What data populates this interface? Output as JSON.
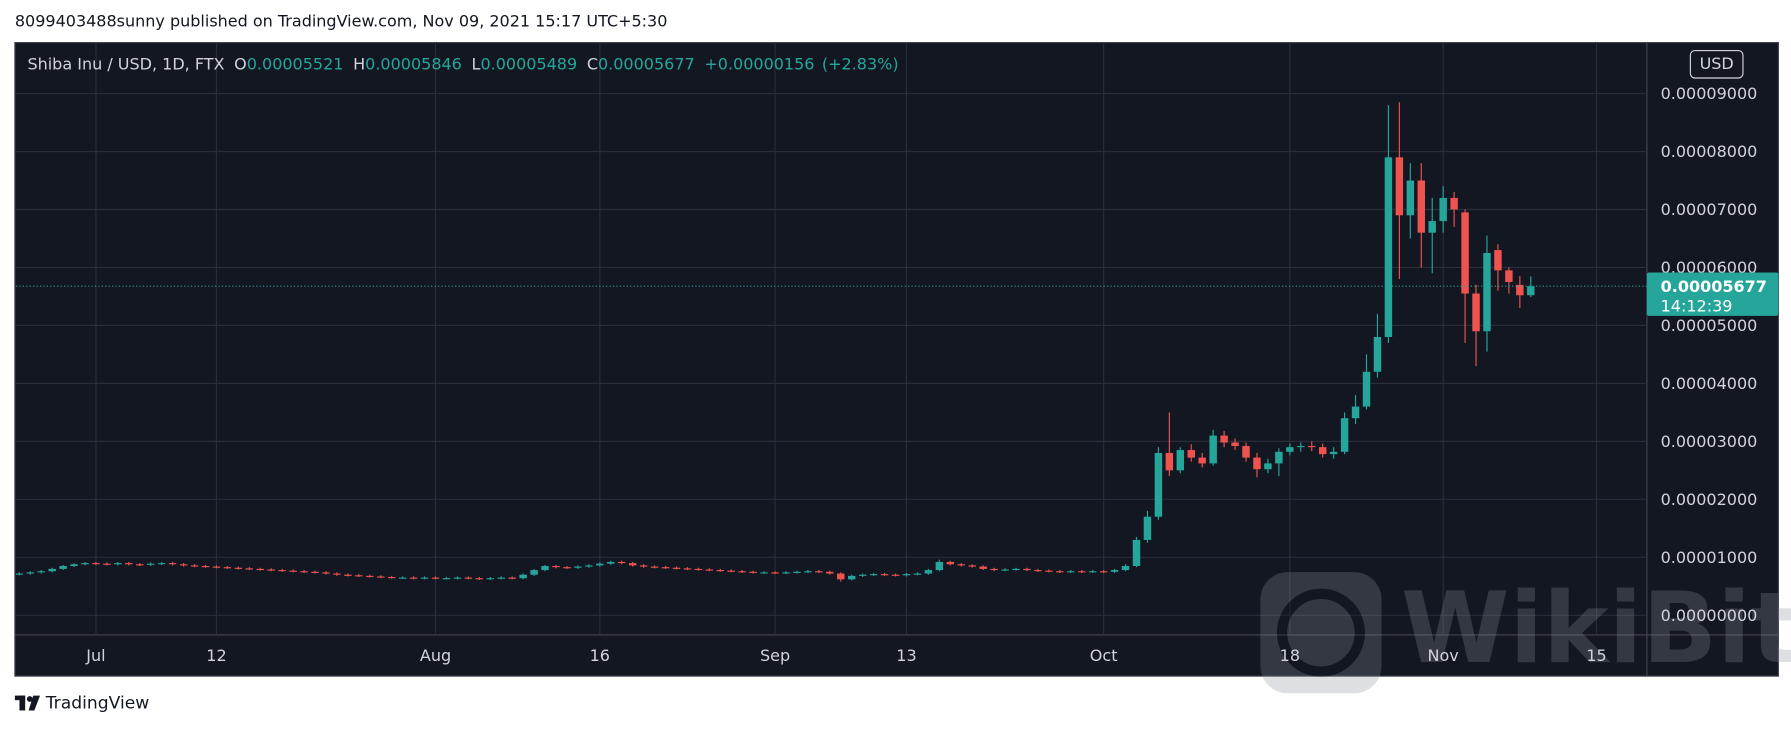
{
  "published": "8099403488sunny published on TradingView.com, Nov 09, 2021 15:17 UTC+5:30",
  "footer": "TradingView",
  "watermark": "WikiBit",
  "chart_data": {
    "type": "candlestick",
    "symbol": "Shiba Inu / USD, 1D, FTX",
    "ohlc_labels": [
      "O",
      "H",
      "L",
      "C"
    ],
    "change": "+0.00000156",
    "change_percent": "(+2.83%)",
    "currency": "USD",
    "countdown": "14:12:39",
    "up_color": "#26a69a",
    "down_color": "#ef5350",
    "grid": true,
    "ylim": [
      -3.4e-06,
      9.88e-05
    ],
    "yticks": [
      {
        "value": 0,
        "label": "0.00000000"
      },
      {
        "value": 1e-05,
        "label": "0.00001000"
      },
      {
        "value": 2e-05,
        "label": "0.00002000"
      },
      {
        "value": 3e-05,
        "label": "0.00003000"
      },
      {
        "value": 4e-05,
        "label": "0.00004000"
      },
      {
        "value": 5e-05,
        "label": "0.00005000"
      },
      {
        "value": 6e-05,
        "label": "0.00006000"
      },
      {
        "value": 7e-05,
        "label": "0.00007000"
      },
      {
        "value": 8e-05,
        "label": "0.00008000"
      },
      {
        "value": 9e-05,
        "label": "0.00009000"
      }
    ],
    "xlim": [
      -0.3,
      148.6
    ],
    "xticks": [
      {
        "value": 7,
        "label": "Jul"
      },
      {
        "value": 18,
        "label": "12"
      },
      {
        "value": 38,
        "label": "Aug"
      },
      {
        "value": 53,
        "label": "16"
      },
      {
        "value": 69,
        "label": "Sep"
      },
      {
        "value": 81,
        "label": "13"
      },
      {
        "value": 99,
        "label": "Oct"
      },
      {
        "value": 116,
        "label": "18"
      },
      {
        "value": 130,
        "label": "Nov"
      },
      {
        "value": 144,
        "label": "15"
      }
    ],
    "open": [
      7.1e-06,
      7.2e-06,
      7.4e-06,
      7.6e-06,
      8e-06,
      8.5e-06,
      8.8e-06,
      9e-06,
      8.9e-06,
      8.8e-06,
      9e-06,
      8.8e-06,
      8.7e-06,
      8.9e-06,
      9e-06,
      8.8e-06,
      8.6e-06,
      8.5e-06,
      8.4e-06,
      8.3e-06,
      8.2e-06,
      8.1e-06,
      8e-06,
      7.9e-06,
      7.8e-06,
      7.7e-06,
      7.6e-06,
      7.5e-06,
      7.4e-06,
      7.2e-06,
      7e-06,
      6.9e-06,
      6.8e-06,
      6.7e-06,
      6.6e-06,
      6.5e-06,
      6.5e-06,
      6.4e-06,
      6.5e-06,
      6.4e-06,
      6.4e-06,
      6.5e-06,
      6.4e-06,
      6.3e-06,
      6.4e-06,
      6.5e-06,
      6.4e-06,
      7e-06,
      7.8e-06,
      8.5e-06,
      8.3e-06,
      8.2e-06,
      8.4e-06,
      8.6e-06,
      8.9e-06,
      9.2e-06,
      9e-06,
      8.6e-06,
      8.4e-06,
      8.3e-06,
      8.2e-06,
      8.1e-06,
      8e-06,
      7.9e-06,
      7.8e-06,
      7.7e-06,
      7.6e-06,
      7.5e-06,
      7.4e-06,
      7.4e-06,
      7.3e-06,
      7.4e-06,
      7.5e-06,
      7.6e-06,
      7.5e-06,
      7.2e-06,
      6.2e-06,
      6.8e-06,
      7e-06,
      7.1e-06,
      7e-06,
      6.9e-06,
      7.1e-06,
      7.2e-06,
      7.8e-06,
      9.2e-06,
      8.8e-06,
      8.6e-06,
      8.4e-06,
      8e-06,
      7.8e-06,
      7.9e-06,
      8e-06,
      7.8e-06,
      7.7e-06,
      7.6e-06,
      7.5e-06,
      7.6e-06,
      7.5e-06,
      7.6e-06,
      7.5e-06,
      7.8e-06,
      8.5e-06,
      1.3e-05,
      1.7e-05,
      2.8e-05,
      2.5e-05,
      2.85e-05,
      2.72e-05,
      2.62e-05,
      3.1e-05,
      2.98e-05,
      2.92e-05,
      2.72e-05,
      2.52e-05,
      2.62e-05,
      2.82e-05,
      2.9e-05,
      2.92e-05,
      2.9e-05,
      2.78e-05,
      2.82e-05,
      3.4e-05,
      3.6e-05,
      4.2e-05,
      4.8e-05,
      7.9e-05,
      6.9e-05,
      7.5e-05,
      6.6e-05,
      6.8e-05,
      7.2e-05,
      6.95e-05,
      5.55e-05,
      4.9e-05,
      6.3e-05,
      5.95e-05,
      5.7e-05,
      5.521e-05
    ],
    "high": [
      7.4e-06,
      7.6e-06,
      7.8e-06,
      8.2e-06,
      8.7e-06,
      9e-06,
      9.2e-06,
      9.2e-06,
      9.1e-06,
      9.2e-06,
      9.2e-06,
      9e-06,
      9.1e-06,
      9.2e-06,
      9.2e-06,
      9e-06,
      8.8e-06,
      8.7e-06,
      8.6e-06,
      8.5e-06,
      8.4e-06,
      8.3e-06,
      8.2e-06,
      8.1e-06,
      8e-06,
      7.9e-06,
      7.8e-06,
      7.7e-06,
      7.6e-06,
      7.4e-06,
      7.2e-06,
      7.1e-06,
      7e-06,
      6.9e-06,
      6.8e-06,
      6.7e-06,
      6.7e-06,
      6.7e-06,
      6.7e-06,
      6.6e-06,
      6.7e-06,
      6.7e-06,
      6.6e-06,
      6.6e-06,
      6.7e-06,
      6.7e-06,
      7.2e-06,
      8e-06,
      8.7e-06,
      8.7e-06,
      8.5e-06,
      8.6e-06,
      8.8e-06,
      9.1e-06,
      9.4e-06,
      9.4e-06,
      9.2e-06,
      8.8e-06,
      8.6e-06,
      8.5e-06,
      8.4e-06,
      8.3e-06,
      8.2e-06,
      8.1e-06,
      8e-06,
      7.9e-06,
      7.8e-06,
      7.7e-06,
      7.6e-06,
      7.6e-06,
      7.6e-06,
      7.7e-06,
      7.8e-06,
      7.8e-06,
      7.7e-06,
      7.4e-06,
      7e-06,
      7.2e-06,
      7.3e-06,
      7.3e-06,
      7.2e-06,
      7.3e-06,
      7.4e-06,
      8e-06,
      9.6e-06,
      9.4e-06,
      9e-06,
      8.8e-06,
      8.6e-06,
      8.2e-06,
      8.1e-06,
      8.2e-06,
      8.2e-06,
      8e-06,
      7.9e-06,
      7.8e-06,
      7.8e-06,
      7.8e-06,
      7.8e-06,
      7.8e-06,
      8e-06,
      8.8e-06,
      1.35e-05,
      1.8e-05,
      2.9e-05,
      3.5e-05,
      2.9e-05,
      2.95e-05,
      2.8e-05,
      3.2e-05,
      3.18e-05,
      3.05e-05,
      2.98e-05,
      2.8e-05,
      2.7e-05,
      2.88e-05,
      2.96e-05,
      2.98e-05,
      3e-05,
      2.96e-05,
      2.9e-05,
      3.5e-05,
      3.8e-05,
      4.5e-05,
      5.2e-05,
      8.8e-05,
      8.85e-05,
      7.8e-05,
      7.8e-05,
      7.2e-05,
      7.4e-05,
      7.3e-05,
      7e-05,
      5.7e-05,
      6.55e-05,
      6.4e-05,
      6e-05,
      5.85e-05,
      5.846e-05
    ],
    "low": [
      6.9e-06,
      7e-06,
      7.2e-06,
      7.4e-06,
      7.8e-06,
      8.3e-06,
      8.6e-06,
      8.7e-06,
      8.6e-06,
      8.6e-06,
      8.6e-06,
      8.5e-06,
      8.5e-06,
      8.7e-06,
      8.6e-06,
      8.4e-06,
      8.3e-06,
      8.2e-06,
      8.1e-06,
      8e-06,
      7.9e-06,
      7.8e-06,
      7.7e-06,
      7.6e-06,
      7.5e-06,
      7.4e-06,
      7.3e-06,
      7.2e-06,
      7e-06,
      6.8e-06,
      6.7e-06,
      6.6e-06,
      6.5e-06,
      6.4e-06,
      6.3e-06,
      6.3e-06,
      6.2e-06,
      6.2e-06,
      6.2e-06,
      6.2e-06,
      6.2e-06,
      6.2e-06,
      6.1e-06,
      6.1e-06,
      6.2e-06,
      6.2e-06,
      6.2e-06,
      6.8e-06,
      7.6e-06,
      8.1e-06,
      8e-06,
      8e-06,
      8.2e-06,
      8.4e-06,
      8.7e-06,
      8.8e-06,
      8.4e-06,
      8.2e-06,
      8.1e-06,
      8e-06,
      7.9e-06,
      7.8e-06,
      7.7e-06,
      7.6e-06,
      7.5e-06,
      7.4e-06,
      7.3e-06,
      7.2e-06,
      7.2e-06,
      7.1e-06,
      7.1e-06,
      7.2e-06,
      7.3e-06,
      7.3e-06,
      7e-06,
      5.8e-06,
      6e-06,
      6.6e-06,
      6.8e-06,
      6.8e-06,
      6.7e-06,
      6.7e-06,
      6.9e-06,
      7e-06,
      7.6e-06,
      8.6e-06,
      8.4e-06,
      8.2e-06,
      7.8e-06,
      7.6e-06,
      7.6e-06,
      7.7e-06,
      7.6e-06,
      7.5e-06,
      7.4e-06,
      7.3e-06,
      7.3e-06,
      7.3e-06,
      7.3e-06,
      7.3e-06,
      7.3e-06,
      7.6e-06,
      8.3e-06,
      1.25e-05,
      1.65e-05,
      2.4e-05,
      2.45e-05,
      2.65e-05,
      2.55e-05,
      2.58e-05,
      2.9e-05,
      2.85e-05,
      2.65e-05,
      2.38e-05,
      2.45e-05,
      2.4e-05,
      2.76e-05,
      2.82e-05,
      2.83e-05,
      2.72e-05,
      2.7e-05,
      2.78e-05,
      3.3e-05,
      3.55e-05,
      4.1e-05,
      4.7e-05,
      5.8e-05,
      6.5e-05,
      6e-05,
      5.9e-05,
      6.6e-05,
      6.7e-05,
      4.7e-05,
      4.3e-05,
      4.55e-05,
      5.6e-05,
      5.55e-05,
      5.3e-05,
      5.489e-05
    ],
    "close": [
      7.2e-06,
      7.4e-06,
      7.6e-06,
      8e-06,
      8.5e-06,
      8.8e-06,
      9e-06,
      8.9e-06,
      8.8e-06,
      9e-06,
      8.8e-06,
      8.7e-06,
      8.9e-06,
      9e-06,
      8.8e-06,
      8.6e-06,
      8.5e-06,
      8.4e-06,
      8.3e-06,
      8.2e-06,
      8.1e-06,
      8e-06,
      7.9e-06,
      7.8e-06,
      7.7e-06,
      7.6e-06,
      7.5e-06,
      7.4e-06,
      7.2e-06,
      7e-06,
      6.9e-06,
      6.8e-06,
      6.7e-06,
      6.6e-06,
      6.5e-06,
      6.5e-06,
      6.4e-06,
      6.5e-06,
      6.4e-06,
      6.4e-06,
      6.5e-06,
      6.4e-06,
      6.3e-06,
      6.4e-06,
      6.5e-06,
      6.4e-06,
      7e-06,
      7.8e-06,
      8.5e-06,
      8.3e-06,
      8.2e-06,
      8.4e-06,
      8.6e-06,
      8.9e-06,
      9.2e-06,
      9e-06,
      8.6e-06,
      8.4e-06,
      8.3e-06,
      8.2e-06,
      8.1e-06,
      8e-06,
      7.9e-06,
      7.8e-06,
      7.7e-06,
      7.6e-06,
      7.5e-06,
      7.4e-06,
      7.4e-06,
      7.3e-06,
      7.4e-06,
      7.5e-06,
      7.6e-06,
      7.5e-06,
      7.2e-06,
      6.2e-06,
      6.8e-06,
      7e-06,
      7.1e-06,
      7e-06,
      6.9e-06,
      7.1e-06,
      7.2e-06,
      7.8e-06,
      9.2e-06,
      8.8e-06,
      8.6e-06,
      8.4e-06,
      8e-06,
      7.8e-06,
      7.9e-06,
      8e-06,
      7.8e-06,
      7.7e-06,
      7.6e-06,
      7.5e-06,
      7.6e-06,
      7.5e-06,
      7.6e-06,
      7.5e-06,
      7.8e-06,
      8.5e-06,
      1.3e-05,
      1.7e-05,
      2.8e-05,
      2.5e-05,
      2.85e-05,
      2.72e-05,
      2.62e-05,
      3.1e-05,
      2.98e-05,
      2.92e-05,
      2.72e-05,
      2.52e-05,
      2.62e-05,
      2.82e-05,
      2.9e-05,
      2.92e-05,
      2.9e-05,
      2.78e-05,
      2.82e-05,
      3.4e-05,
      3.6e-05,
      4.2e-05,
      4.8e-05,
      7.9e-05,
      6.9e-05,
      7.5e-05,
      6.6e-05,
      6.8e-05,
      7.2e-05,
      7e-05,
      5.55e-05,
      4.9e-05,
      6.25e-05,
      5.95e-05,
      5.75e-05,
      5.52e-05,
      5.677e-05
    ]
  }
}
